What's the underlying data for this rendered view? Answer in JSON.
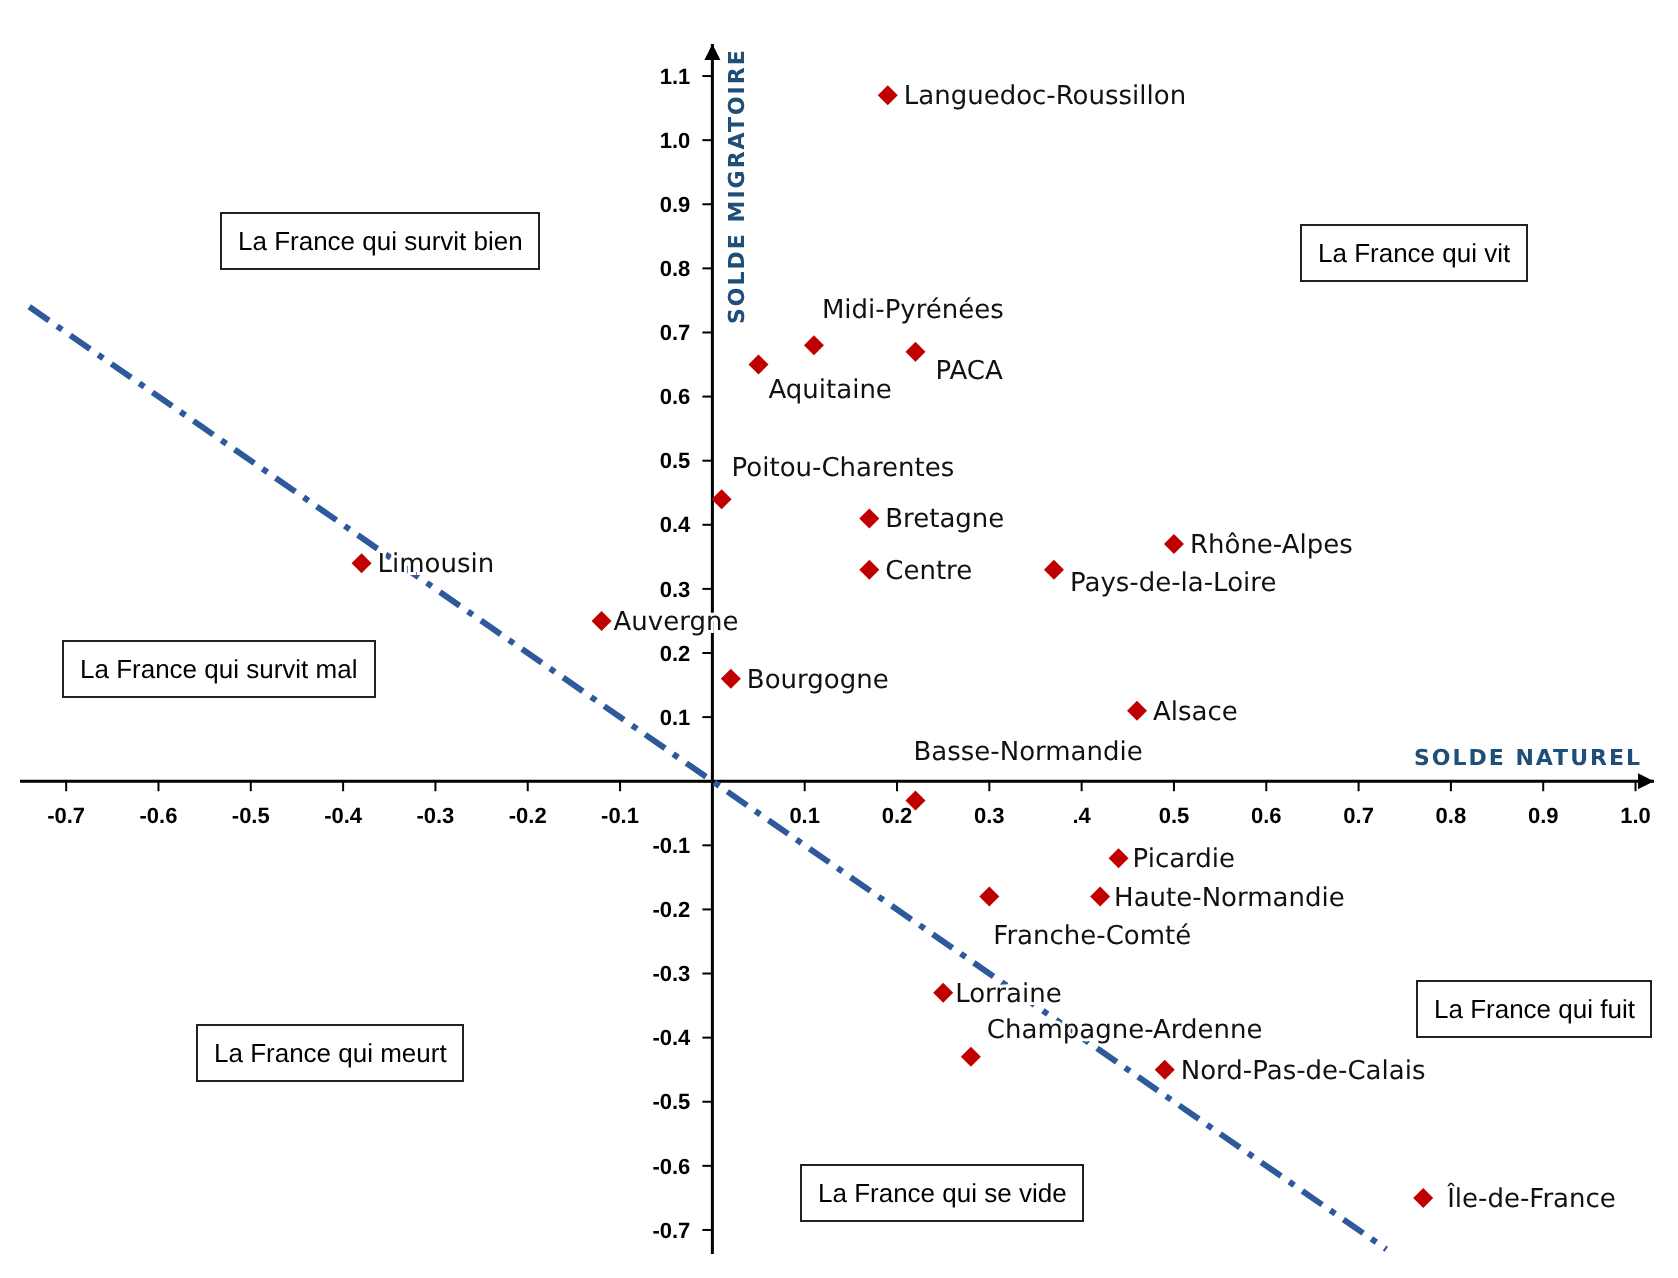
{
  "chart_data": {
    "type": "scatter",
    "xlabel": "SOLDE NATUREL",
    "ylabel": "SOLDE MIGRATOIRE",
    "marker": "diamond",
    "grid": false,
    "legend": false,
    "xlim": [
      -0.75,
      1.02
    ],
    "ylim": [
      -0.75,
      1.15
    ],
    "xticks": [
      -0.7,
      -0.6,
      -0.5,
      -0.4,
      -0.3,
      -0.2,
      -0.1,
      {
        "value": 0,
        "label": null
      },
      0.1,
      0.2,
      0.3,
      {
        "value": 0.4,
        "label": ".4"
      },
      0.5,
      0.6,
      0.7,
      0.8,
      0.9,
      {
        "value": 1,
        "label": "1.0"
      }
    ],
    "yticks": [
      -0.7,
      -0.6,
      -0.5,
      -0.4,
      -0.3,
      -0.2,
      -0.1,
      {
        "value": 0,
        "label": null
      },
      0.1,
      0.2,
      0.3,
      0.4,
      0.5,
      0.6,
      0.7,
      0.8,
      0.9,
      {
        "value": 1,
        "label": "1.0"
      },
      1.1
    ],
    "annotations": [
      "La France qui survit bien",
      "La France qui vit",
      "La France qui survit mal",
      "La France qui meurt",
      "La France qui fuit",
      "La France qui se vide"
    ],
    "series": [
      {
        "name": "Languedoc-Roussillon",
        "color": "#c00000",
        "x": [
          0.19
        ],
        "values": [
          1.07
        ]
      },
      {
        "name": "Midi-Pyrénées",
        "color": "#c00000",
        "x": [
          0.11
        ],
        "values": [
          0.68
        ]
      },
      {
        "name": "Aquitaine",
        "color": "#c00000",
        "x": [
          0.05
        ],
        "values": [
          0.65
        ]
      },
      {
        "name": "PACA",
        "color": "#c00000",
        "x": [
          0.22
        ],
        "values": [
          0.67
        ]
      },
      {
        "name": "Poitou-Charentes",
        "color": "#c00000",
        "x": [
          0.01
        ],
        "values": [
          0.44
        ]
      },
      {
        "name": "Bretagne",
        "color": "#c00000",
        "x": [
          0.17
        ],
        "values": [
          0.41
        ]
      },
      {
        "name": "Centre",
        "color": "#c00000",
        "x": [
          0.17
        ],
        "values": [
          0.33
        ]
      },
      {
        "name": "Rhône-Alpes",
        "color": "#c00000",
        "x": [
          0.5
        ],
        "values": [
          0.37
        ]
      },
      {
        "name": "Pays-de-la-Loire",
        "color": "#c00000",
        "x": [
          0.37
        ],
        "values": [
          0.33
        ]
      },
      {
        "name": "Limousin",
        "color": "#c00000",
        "x": [
          -0.38
        ],
        "values": [
          0.34
        ]
      },
      {
        "name": "Auvergne",
        "color": "#c00000",
        "x": [
          -0.12
        ],
        "values": [
          0.25
        ]
      },
      {
        "name": "Bourgogne",
        "color": "#c00000",
        "x": [
          0.02
        ],
        "values": [
          0.16
        ]
      },
      {
        "name": "Alsace",
        "color": "#c00000",
        "x": [
          0.46
        ],
        "values": [
          0.11
        ]
      },
      {
        "name": "Basse-Normandie",
        "color": "#c00000",
        "x": [
          0.22
        ],
        "values": [
          -0.03
        ]
      },
      {
        "name": "Picardie",
        "color": "#c00000",
        "x": [
          0.44
        ],
        "values": [
          -0.12
        ]
      },
      {
        "name": "Haute-Normandie",
        "color": "#c00000",
        "x": [
          0.42
        ],
        "values": [
          -0.18
        ]
      },
      {
        "name": "Franche-Comté",
        "color": "#c00000",
        "x": [
          0.3
        ],
        "values": [
          -0.18
        ]
      },
      {
        "name": "Lorraine",
        "color": "#c00000",
        "x": [
          0.25
        ],
        "values": [
          -0.33
        ]
      },
      {
        "name": "Champagne-Ardenne",
        "color": "#c00000",
        "x": [
          0.28
        ],
        "values": [
          -0.43
        ]
      },
      {
        "name": "Nord-Pas-de-Calais",
        "color": "#c00000",
        "x": [
          0.49
        ],
        "values": [
          -0.45
        ]
      },
      {
        "name": "Île-de-France",
        "color": "#c00000",
        "x": [
          0.77
        ],
        "values": [
          -0.65
        ]
      },
      {
        "type": "line",
        "color": "#2e5a9c",
        "line_style": "dashed",
        "marker": "none",
        "x": [
          -0.74,
          0.73
        ],
        "values": [
          0.74,
          -0.73
        ]
      }
    ]
  }
}
